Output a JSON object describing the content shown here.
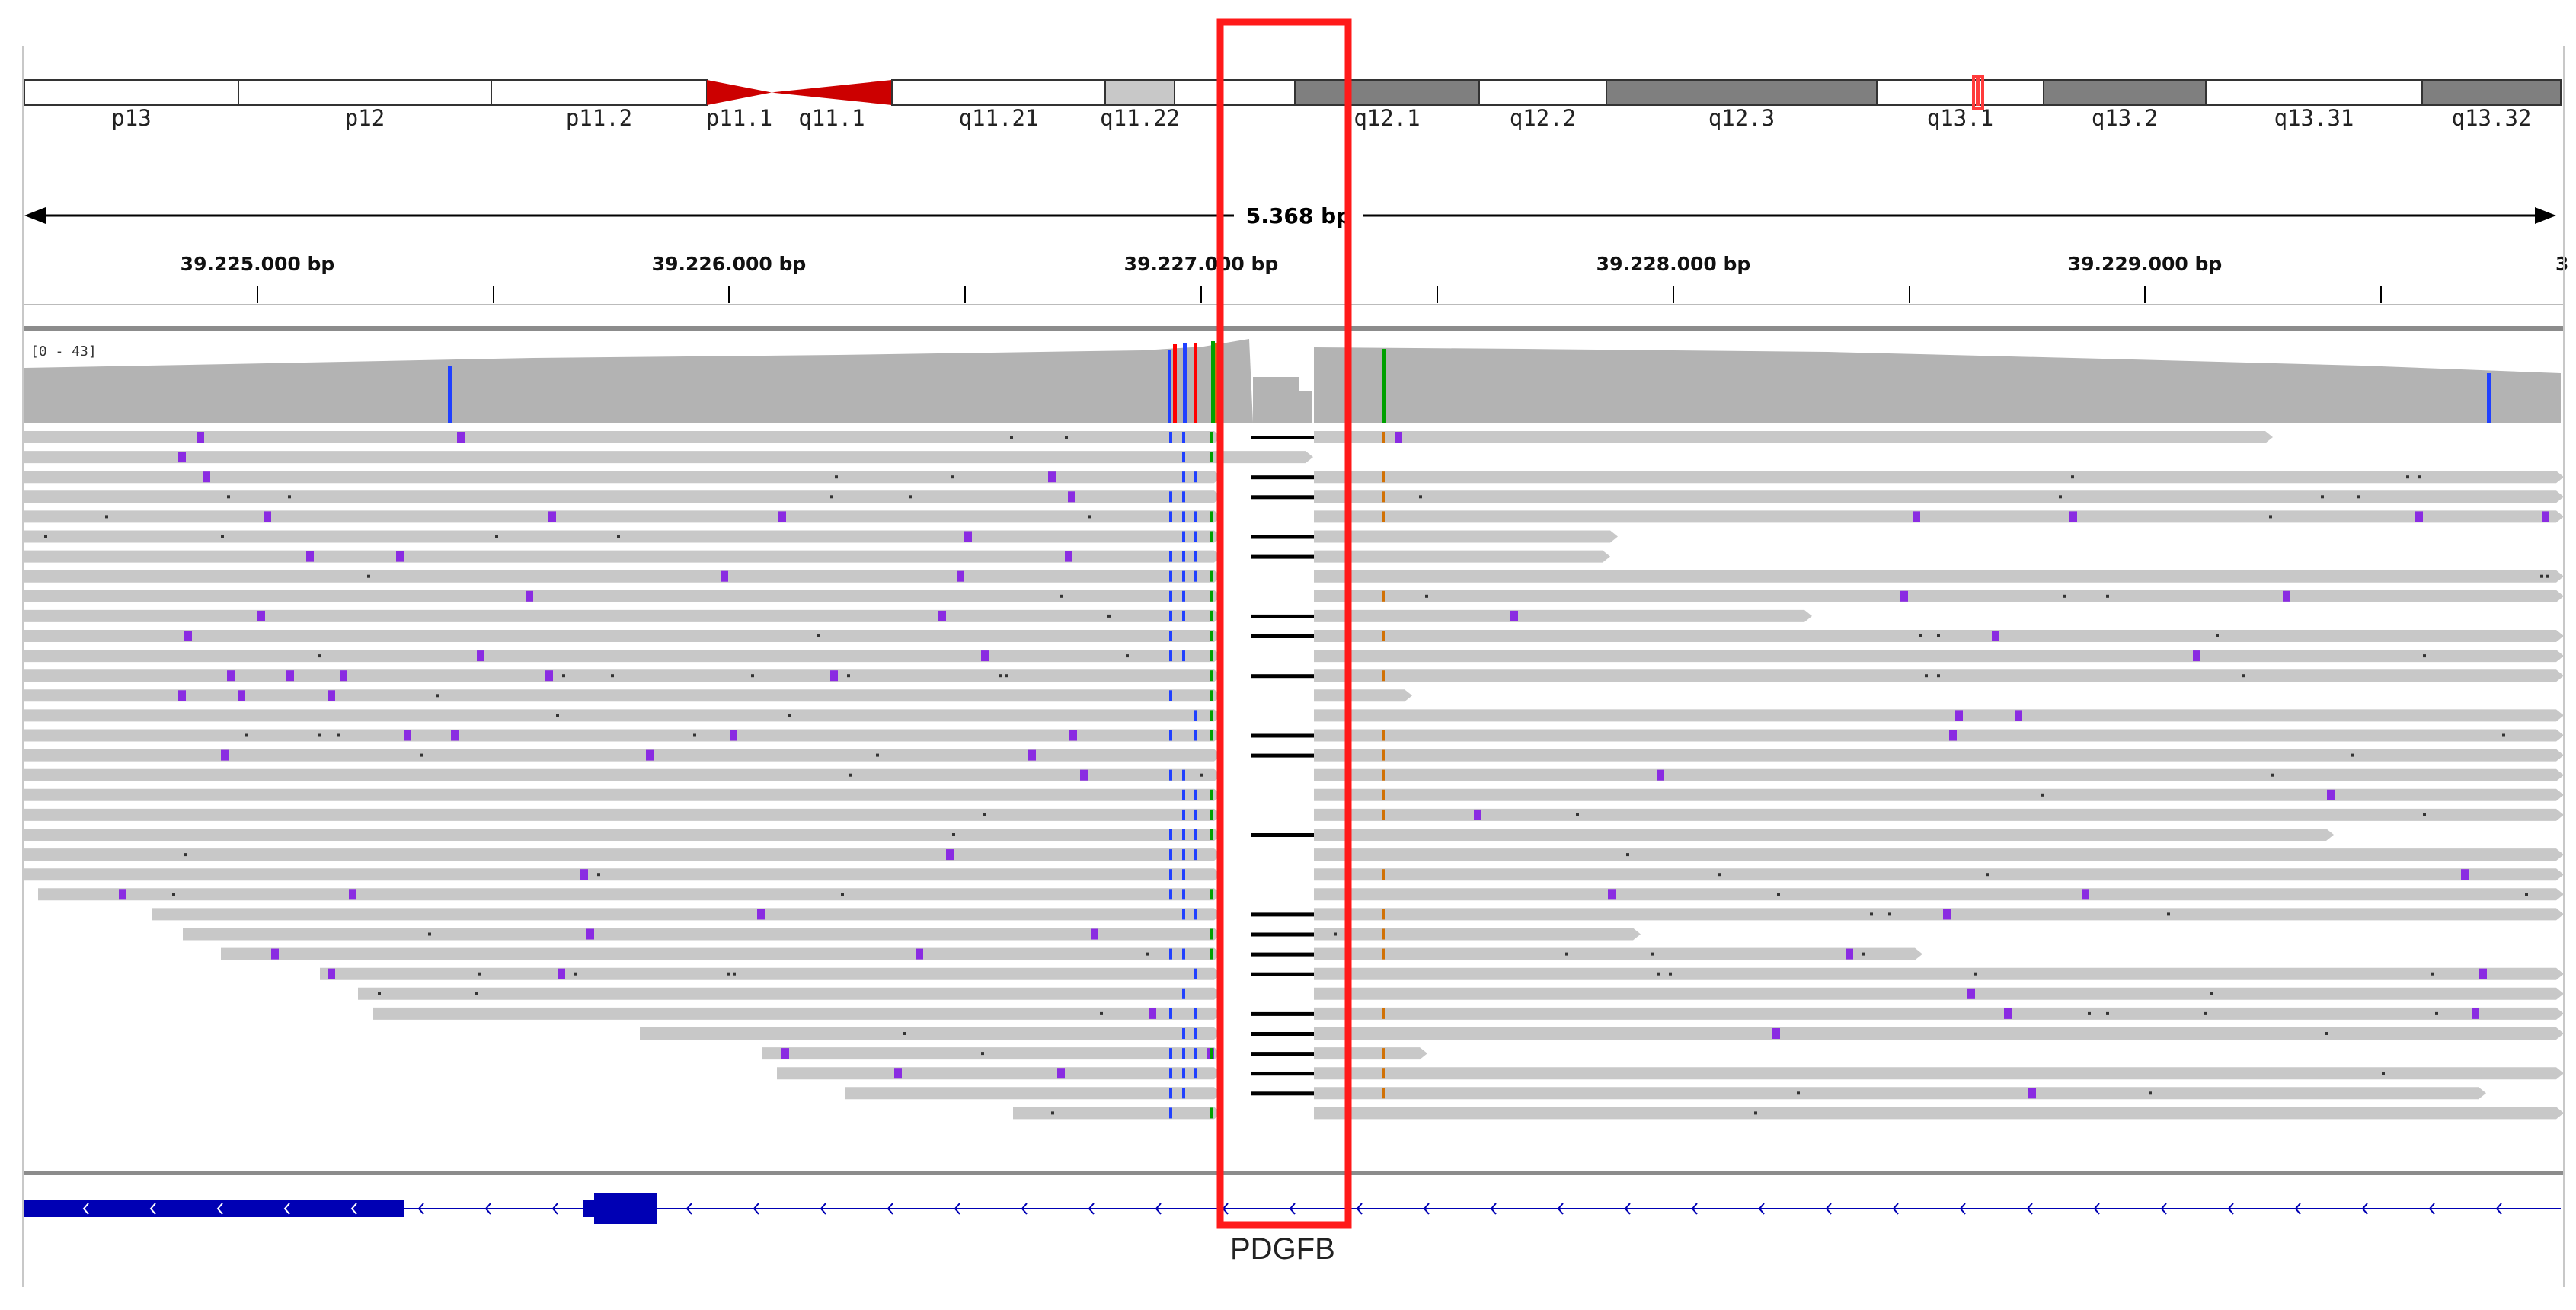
{
  "window": {
    "app": "IGV genome browser"
  },
  "ideogram": {
    "bands": [
      {
        "name": "p13",
        "stain": "gneg"
      },
      {
        "name": "p12",
        "stain": "gneg"
      },
      {
        "name": "p11.2",
        "stain": "gneg"
      },
      {
        "name": "p11.1",
        "stain": "acen"
      },
      {
        "name": "q11.1",
        "stain": "acen"
      },
      {
        "name": "q11.21",
        "stain": "gneg"
      },
      {
        "name": "q11.22",
        "stain": "gpos25"
      },
      {
        "name": "",
        "stain": "gneg"
      },
      {
        "name": "q12.1",
        "stain": "gpos75"
      },
      {
        "name": "q12.2",
        "stain": "gneg"
      },
      {
        "name": "q12.3",
        "stain": "gpos75"
      },
      {
        "name": "q13.1",
        "stain": "gneg"
      },
      {
        "name": "q13.2",
        "stain": "gpos75"
      },
      {
        "name": "q13.31",
        "stain": "gneg"
      },
      {
        "name": "q13.32",
        "stain": "gpos75"
      }
    ],
    "current_locus_marker_color": "#ff3b3b"
  },
  "ruler": {
    "span_label": "5.368 bp",
    "ticks": [
      "39.225.000 bp",
      "39.226.000 bp",
      "39.227.000 bp",
      "39.228.000 bp",
      "39.229.000 bp",
      "3"
    ]
  },
  "coverage": {
    "range_label": "[0 - 43]",
    "color": "#b3b3b3"
  },
  "alignments": {
    "read_color": "#c8c8c8",
    "insertion_color": "#8a2be2",
    "mismatch_colors": {
      "A": "#00a000",
      "C": "#2040ff",
      "G": "#d17105",
      "T": "#ff0000"
    },
    "deletion_color": "#000000"
  },
  "gene_track": {
    "gene_name": "PDGFB",
    "color": "#0000b4",
    "strand": "-"
  },
  "highlight": {
    "color": "#ff1a1a"
  }
}
